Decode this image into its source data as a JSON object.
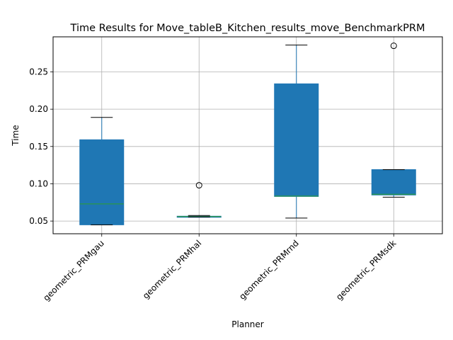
{
  "chart_data": {
    "type": "box",
    "title": "Time Results for Move_tableB_Kitchen_results_move_BenchmarkPRM",
    "xlabel": "Planner",
    "ylabel": "Time",
    "categories": [
      "geometric_PRMgau",
      "geometric_PRMhal",
      "geometric_PRMrnd",
      "geometric_PRMsdk"
    ],
    "ylim": [
      0.033,
      0.297
    ],
    "yticks": [
      0.05,
      0.1,
      0.15,
      0.2,
      0.25
    ],
    "ytick_labels": [
      "0.05",
      "0.10",
      "0.15",
      "0.20",
      "0.25"
    ],
    "grid": true,
    "boxes": [
      {
        "category": "geometric_PRMgau",
        "whisker_low": 0.045,
        "q1": 0.045,
        "median": 0.073,
        "q3": 0.159,
        "whisker_high": 0.189,
        "outliers": []
      },
      {
        "category": "geometric_PRMhal",
        "whisker_low": 0.0555,
        "q1": 0.0555,
        "median": 0.056,
        "q3": 0.0565,
        "whisker_high": 0.0575,
        "outliers": [
          0.098
        ]
      },
      {
        "category": "geometric_PRMrnd",
        "whisker_low": 0.054,
        "q1": 0.083,
        "median": 0.0835,
        "q3": 0.234,
        "whisker_high": 0.286,
        "outliers": []
      },
      {
        "category": "geometric_PRMsdk",
        "whisker_low": 0.082,
        "q1": 0.085,
        "median": 0.086,
        "q3": 0.119,
        "whisker_high": 0.119,
        "outliers": [
          0.285
        ]
      }
    ],
    "colors": {
      "box": "#1f77b4",
      "median": "#2ca02c",
      "whisker": "#1f77b4",
      "cap": "#000000",
      "grid": "#b0b0b0"
    }
  }
}
